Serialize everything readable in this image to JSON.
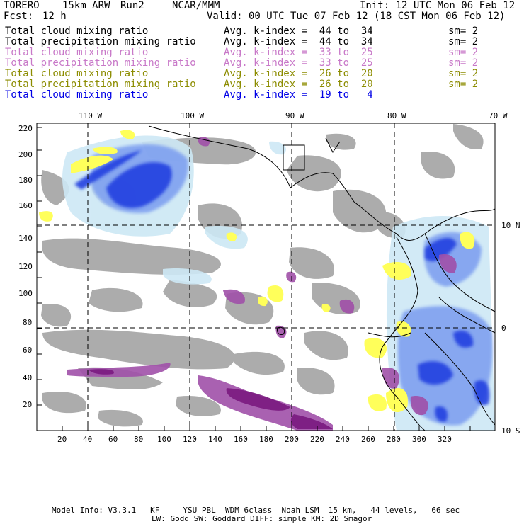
{
  "header": {
    "model": "TORERO",
    "resolution": "15km ARW",
    "run": "Run2",
    "org": "NCAR/MMM",
    "init": "Init: 12 UTC Mon 06 Feb 12",
    "fcst_label": "Fcst:",
    "fcst_value": "12 h",
    "valid": "Valid: 00 UTC Tue 07 Feb 12 (18 CST Mon 06 Feb 12)"
  },
  "legend": [
    {
      "field": "Total cloud mixing ratio",
      "range": "Avg. k-index =  44 to  34",
      "sm": "sm= 2",
      "color": "#000000"
    },
    {
      "field": "Total precipitation mixing ratio",
      "range": "Avg. k-index =  44 to  34",
      "sm": "sm= 2",
      "color": "#000000"
    },
    {
      "field": "Total cloud mixing ratio",
      "range": "Avg. k-index =  33 to  25",
      "sm": "sm= 2",
      "color": "#c878c8"
    },
    {
      "field": "Total precipitation mixing ratio",
      "range": "Avg. k-index =  33 to  25",
      "sm": "sm= 2",
      "color": "#c878c8"
    },
    {
      "field": "Total cloud mixing ratio",
      "range": "Avg. k-index =  26 to  20",
      "sm": "sm= 2",
      "color": "#8c8c00"
    },
    {
      "field": "Total precipitation mixing ratio",
      "range": "Avg. k-index =  26 to  20",
      "sm": "sm= 2",
      "color": "#8c8c00"
    },
    {
      "field": "Total cloud mixing ratio",
      "range": "Avg. k-index =  19 to   4",
      "sm": "",
      "color": "#0000e6"
    }
  ],
  "map": {
    "lon_labels": [
      "110 W",
      "100 W",
      "90 W",
      "80 W",
      "70 W"
    ],
    "lat_labels": [
      "10 N",
      "0",
      "10 S"
    ],
    "x_ticks": [
      "20",
      "40",
      "60",
      "80",
      "100",
      "120",
      "140",
      "160",
      "180",
      "200",
      "220",
      "240",
      "260",
      "280",
      "300",
      "320"
    ],
    "y_ticks": [
      "220",
      "200",
      "180",
      "160",
      "140",
      "120",
      "100",
      "80",
      "60",
      "40",
      "20"
    ],
    "colors": {
      "gray": "#a8a8a8",
      "light_blue": "#cde8f5",
      "mid_blue": "#7a9cf0",
      "blue": "#2040e0",
      "purple": "#a050a8",
      "dark_purple": "#7a1a80",
      "yellow": "#ffff5a"
    }
  },
  "footer": {
    "line1": "Model Info: V3.3.1   KF     YSU PBL  WDM 6class  Noah LSM  15 km,   44 levels,   66 sec",
    "line2": "LW: Godd SW: Goddard DIFF: simple KM: 2D Smagor"
  }
}
